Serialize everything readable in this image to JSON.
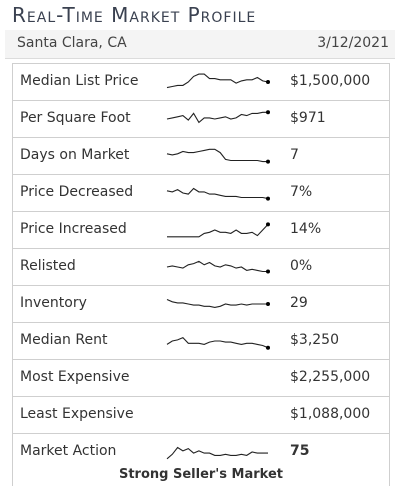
{
  "header": {
    "title": "Real-Time Market Profile",
    "location": "Santa Clara, CA",
    "date": "3/12/2021"
  },
  "rows": [
    {
      "key": "median-list-price",
      "label": "Median List Price",
      "value": "$1,500,000",
      "trend": [
        3,
        4,
        5,
        5,
        8,
        13,
        15,
        15,
        11,
        11,
        10,
        10,
        10,
        7,
        9,
        10,
        10,
        12,
        9,
        8
      ]
    },
    {
      "key": "per-square-foot",
      "label": "Per Square Foot",
      "value": "$971",
      "trend": [
        8,
        9,
        10,
        11,
        7,
        13,
        5,
        9,
        9,
        8,
        9,
        10,
        8,
        9,
        12,
        11,
        13,
        13,
        14,
        14
      ]
    },
    {
      "key": "days-on-market",
      "label": "Days on Market",
      "value": "7",
      "trend": [
        10,
        9,
        10,
        12,
        11,
        11,
        12,
        13,
        14,
        14,
        11,
        5,
        4,
        4,
        4,
        4,
        4,
        4,
        3,
        3
      ]
    },
    {
      "key": "price-decreased",
      "label": "Price Decreased",
      "value": "7%",
      "trend": [
        10,
        9,
        11,
        8,
        7,
        12,
        9,
        9,
        7,
        7,
        6,
        5,
        5,
        5,
        4,
        4,
        4,
        4,
        4,
        3
      ]
    },
    {
      "key": "price-increased",
      "label": "Price Increased",
      "value": "14%",
      "trend": [
        2,
        2,
        2,
        2,
        2,
        2,
        2,
        5,
        6,
        8,
        6,
        6,
        5,
        8,
        5,
        5,
        6,
        3,
        8,
        13
      ]
    },
    {
      "key": "relisted",
      "label": "Relisted",
      "value": "0%",
      "trend": [
        8,
        9,
        8,
        7,
        10,
        11,
        13,
        10,
        12,
        9,
        8,
        10,
        9,
        7,
        8,
        5,
        6,
        5,
        4,
        4
      ]
    },
    {
      "key": "inventory",
      "label": "Inventory",
      "value": "29",
      "trend": [
        12,
        10,
        9,
        9,
        8,
        7,
        7,
        6,
        6,
        5,
        6,
        8,
        7,
        7,
        8,
        7,
        8,
        8,
        8,
        8
      ]
    },
    {
      "key": "median-rent",
      "label": "Median Rent",
      "value": "$3,250",
      "trend": [
        5,
        8,
        9,
        11,
        6,
        6,
        6,
        5,
        7,
        8,
        8,
        7,
        7,
        6,
        5,
        6,
        6,
        5,
        4,
        2
      ]
    },
    {
      "key": "most-expensive",
      "label": "Most Expensive",
      "value": "$2,255,000",
      "trend": null
    },
    {
      "key": "least-expensive",
      "label": "Least Expensive",
      "value": "$1,088,000",
      "trend": null
    },
    {
      "key": "market-action",
      "label": "Market Action",
      "value": "75",
      "trend": [
        2,
        6,
        12,
        9,
        11,
        7,
        9,
        7,
        7,
        5,
        5,
        6,
        5,
        5,
        6,
        5,
        8,
        7,
        7,
        7
      ],
      "bold": true
    }
  ],
  "verdict": "Strong Seller's Market",
  "colors": {
    "title": "#3a4150",
    "sub_bar_bg": "#f4f4f4",
    "border": "#cfcfcf",
    "sparkline": "#222222"
  }
}
